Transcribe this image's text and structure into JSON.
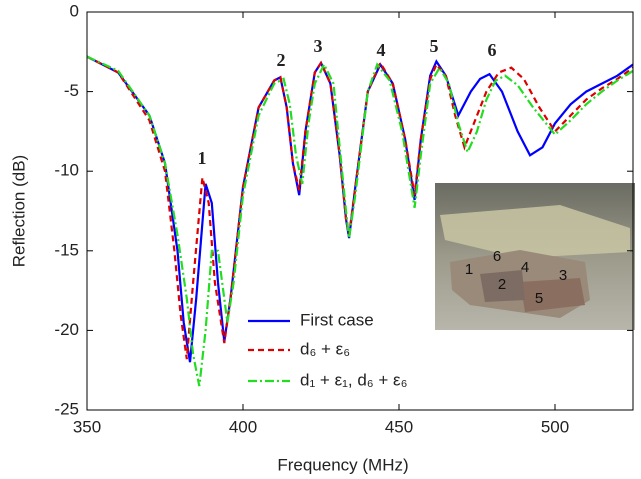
{
  "chart_data": {
    "type": "line",
    "xlabel": "Frequency (MHz)",
    "ylabel": "Reflection (dB)",
    "xlim": [
      350,
      525
    ],
    "ylim": [
      -25,
      0
    ],
    "xticks": [
      350,
      400,
      450,
      500
    ],
    "yticks": [
      0,
      -5,
      -10,
      -15,
      -20,
      -25
    ],
    "grid": false,
    "legend": "lower center",
    "annotations": [
      "1",
      "2",
      "3",
      "4",
      "5",
      "6"
    ],
    "inset_labels": [
      "1",
      "6",
      "4",
      "3",
      "2",
      "5"
    ],
    "series": [
      {
        "name": "First case",
        "color": "#0000ff",
        "style": "solid",
        "x": [
          350,
          360,
          370,
          375,
          379,
          381,
          383,
          385,
          388,
          390,
          392,
          394,
          396,
          400,
          405,
          410,
          412,
          414,
          416,
          418,
          420,
          423,
          425,
          428,
          431,
          433,
          434,
          436,
          440,
          444,
          448,
          452,
          455,
          457,
          460,
          462,
          465,
          469,
          473,
          476,
          479,
          483,
          488,
          492,
          496,
          500,
          505,
          510,
          515,
          520,
          525
        ],
        "values": [
          -2.8,
          -3.8,
          -6.5,
          -9.5,
          -15,
          -19.5,
          -22,
          -18,
          -10.8,
          -12,
          -17,
          -20.7,
          -18,
          -11,
          -6,
          -4.3,
          -4.1,
          -6,
          -9.5,
          -11.5,
          -7.5,
          -3.8,
          -3.2,
          -4.5,
          -9,
          -13,
          -14.2,
          -11,
          -5,
          -3.3,
          -4.5,
          -8,
          -11.8,
          -8,
          -4,
          -3.1,
          -4,
          -6.5,
          -5,
          -4.2,
          -3.9,
          -5,
          -7.5,
          -9,
          -8.5,
          -7,
          -5.8,
          -5,
          -4.5,
          -4,
          -3.3
        ]
      },
      {
        "name": "d₆ + ε₆",
        "color": "#dd0000",
        "style": "dashed",
        "x": [
          350,
          360,
          370,
          375,
          378,
          380,
          382,
          384,
          387,
          389,
          391,
          394,
          396,
          400,
          405,
          410,
          412,
          414,
          416,
          418,
          420,
          423,
          425,
          428,
          431,
          433,
          434,
          436,
          440,
          444,
          448,
          452,
          455,
          457,
          460,
          462,
          465,
          468,
          471,
          474,
          478,
          482,
          486,
          490,
          495,
          500,
          505,
          510,
          515,
          520,
          525
        ],
        "values": [
          -2.8,
          -3.8,
          -6.8,
          -10,
          -15,
          -19,
          -21.8,
          -17,
          -10.4,
          -12,
          -17,
          -20.8,
          -18,
          -11,
          -6,
          -4.3,
          -4.1,
          -6,
          -9.5,
          -11.2,
          -7.5,
          -3.8,
          -3.2,
          -4.5,
          -9,
          -13,
          -14,
          -11,
          -5,
          -3.2,
          -4.5,
          -8,
          -11.5,
          -8,
          -4.2,
          -3.3,
          -4,
          -6.5,
          -8.5,
          -7,
          -5,
          -3.8,
          -3.5,
          -4.2,
          -6,
          -7.5,
          -6.5,
          -5.5,
          -4.8,
          -4.2,
          -3.5
        ]
      },
      {
        "name": "d₁ + ε₁, d₆ + ε₆",
        "color": "#22dd22",
        "style": "dashdot",
        "x": [
          350,
          360,
          370,
          375,
          379,
          382,
          384,
          386,
          388,
          390,
          392,
          395,
          397,
          400,
          405,
          410,
          413,
          415,
          417,
          419,
          421,
          423,
          426,
          429,
          431,
          433,
          434,
          436,
          440,
          443,
          447,
          451,
          455,
          457,
          460,
          463,
          466,
          469,
          472,
          475,
          478,
          481,
          484,
          488,
          493,
          500,
          505,
          510,
          515,
          520,
          525
        ],
        "values": [
          -2.8,
          -3.7,
          -6.5,
          -9.5,
          -14,
          -18,
          -21.5,
          -23.5,
          -20,
          -15,
          -15,
          -19.5,
          -17,
          -11.5,
          -6.5,
          -4.5,
          -4.2,
          -5.8,
          -9,
          -10.8,
          -7,
          -4.5,
          -3.3,
          -4.5,
          -8.5,
          -12.5,
          -14.2,
          -11.5,
          -5,
          -3.3,
          -4.3,
          -7.5,
          -12.3,
          -9,
          -4.5,
          -3.5,
          -4.5,
          -7,
          -8.8,
          -7.5,
          -5.5,
          -4.3,
          -4,
          -4.6,
          -6,
          -7.7,
          -6.8,
          -5.8,
          -5,
          -4.3,
          -3.7
        ]
      }
    ]
  }
}
